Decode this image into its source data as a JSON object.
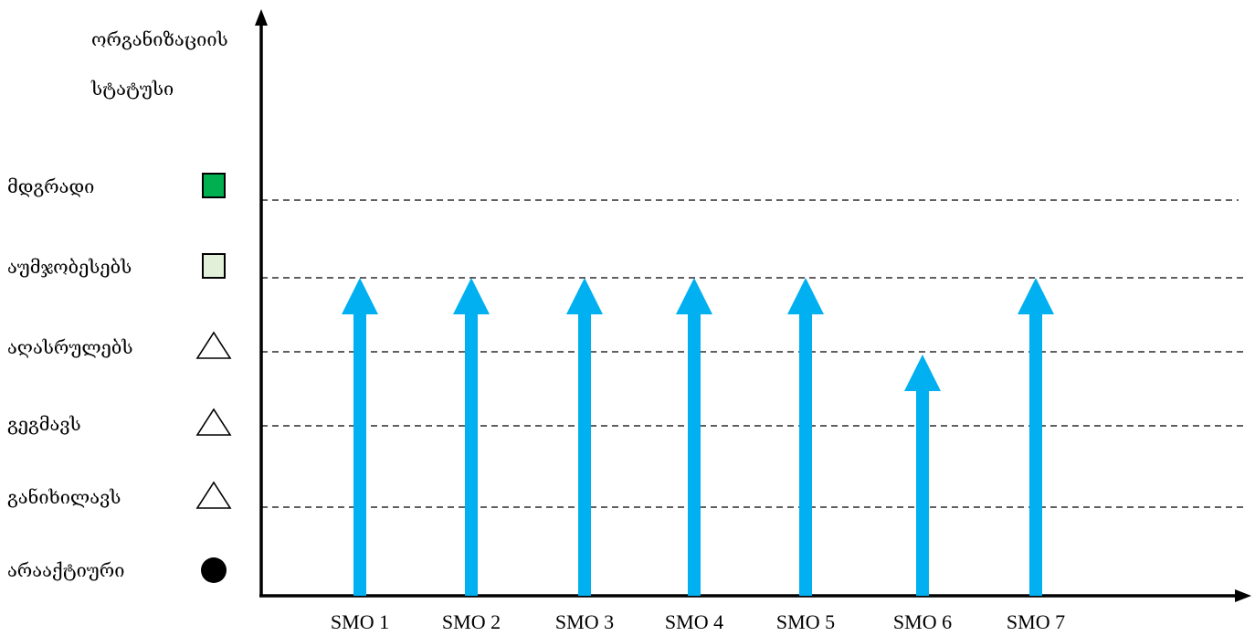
{
  "chart_data": {
    "type": "bar",
    "title": "",
    "ylabel_lines": [
      "ორგანიზაციის",
      "სტატუსი"
    ],
    "xlabel": "",
    "levels": [
      {
        "label": "არააქტიური",
        "marker": "circle-filled",
        "color": "#000000"
      },
      {
        "label": "განიხილავს",
        "marker": "triangle-outline",
        "color": "#ffffff"
      },
      {
        "label": "გეგმავს",
        "marker": "triangle-outline",
        "color": "#ffffff"
      },
      {
        "label": "აღასრულებს",
        "marker": "triangle-outline",
        "color": "#ffffff"
      },
      {
        "label": "აუმჯობესებს",
        "marker": "square-filled",
        "color": "#e2efd9"
      },
      {
        "label": "მდგრადი",
        "marker": "square-filled",
        "color": "#00b050"
      }
    ],
    "categories": [
      "SMO 1",
      "SMO 2",
      "SMO 3",
      "SMO 4",
      "SMO 5",
      "SMO 6",
      "SMO 7"
    ],
    "values": [
      4,
      4,
      4,
      4,
      4,
      3,
      4
    ],
    "value_labels": [
      "აუმჯობესებს",
      "აუმჯობესებს",
      "აუმჯობესებს",
      "აუმჯობესებს",
      "აუმჯობესებს",
      "აღასრულებს",
      "აუმჯობესებს"
    ],
    "ylim": [
      0,
      5
    ],
    "grid": true,
    "colors": {
      "arrow": "#00b0f0",
      "axis": "#000000",
      "grid": "#000000"
    }
  }
}
